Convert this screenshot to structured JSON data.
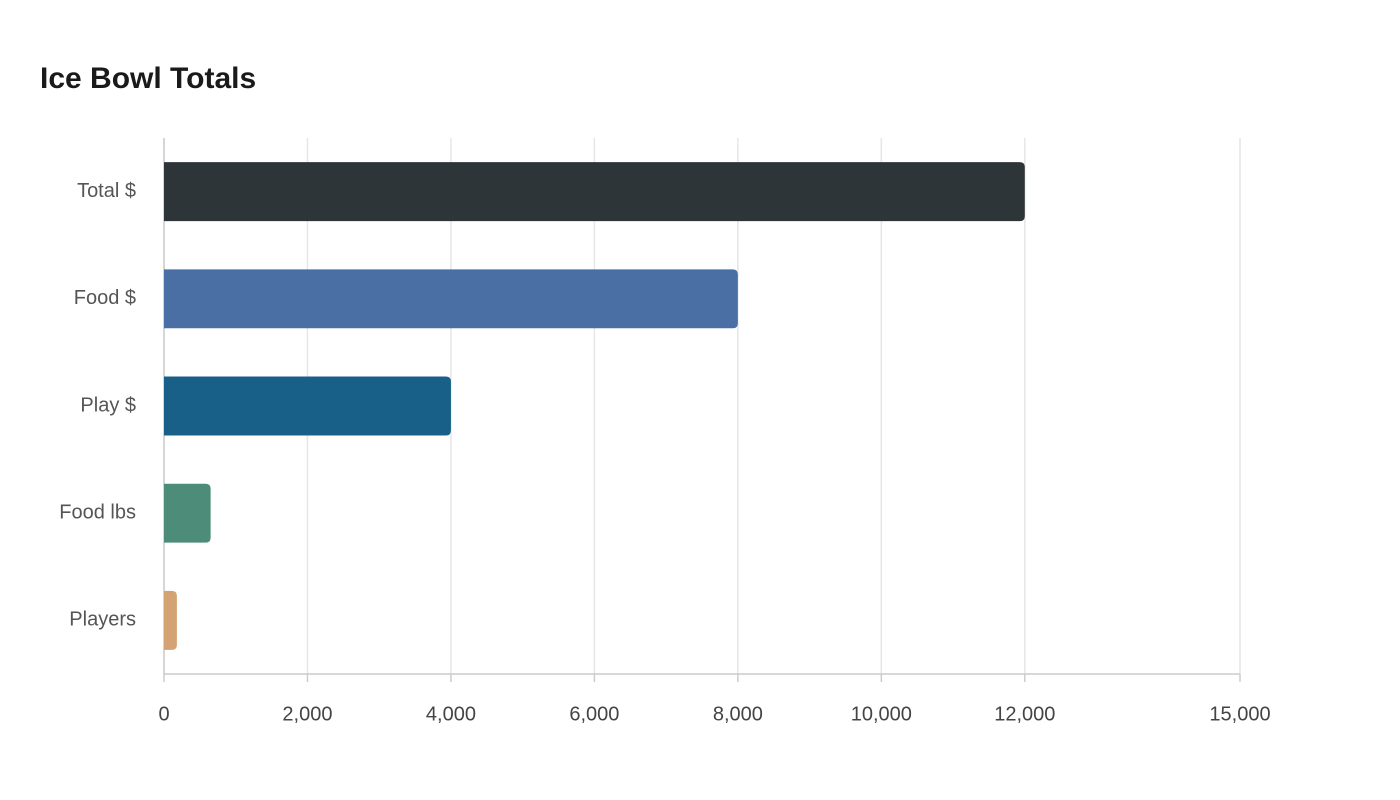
{
  "chart_data": {
    "type": "bar",
    "orientation": "horizontal",
    "title": "Ice Bowl Totals",
    "categories": [
      "Total $",
      "Food $",
      "Play $",
      "Food lbs",
      "Players"
    ],
    "values": [
      12000,
      8000,
      4000,
      650,
      180
    ],
    "colors": [
      "#2e3538",
      "#4a6fa5",
      "#196088",
      "#4e8c7a",
      "#d4a373"
    ],
    "xlim": [
      0,
      15000
    ],
    "xticks": [
      0,
      {
        "value": 2000,
        "label": "2,000"
      },
      {
        "value": 4000,
        "label": "4,000"
      },
      {
        "value": 6000,
        "label": "6,000"
      },
      {
        "value": 8000,
        "label": "8,000"
      },
      {
        "value": 10000,
        "label": "10,000"
      },
      {
        "value": 12000,
        "label": "12,000"
      },
      {
        "value": 15000,
        "label": "15,000"
      }
    ],
    "grid": true
  }
}
